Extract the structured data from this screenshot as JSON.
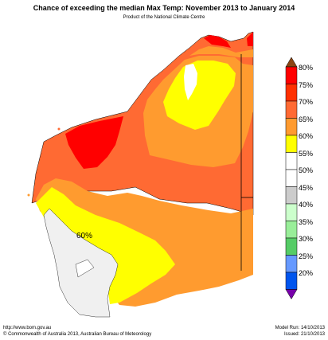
{
  "header": {
    "title": "Chance of exceeding the median Max Temp: November 2013 to January 2014",
    "subtitle": "Product of the National Climate Centre"
  },
  "map": {
    "annotation": "60%"
  },
  "legend": {
    "items": [
      {
        "label": "80%",
        "color": "#ff0000"
      },
      {
        "label": "75%",
        "color": "#ff3000"
      },
      {
        "label": "70%",
        "color": "#ff6a33"
      },
      {
        "label": "65%",
        "color": "#ff9b2f"
      },
      {
        "label": "60%",
        "color": "#ffff00"
      },
      {
        "label": "55%",
        "color": "#ffffff"
      },
      {
        "label": "50%",
        "color": "#ffffff"
      },
      {
        "label": "45%",
        "color": "#cccccc"
      },
      {
        "label": "40%",
        "color": "#ccffcc"
      },
      {
        "label": "35%",
        "color": "#99ee99"
      },
      {
        "label": "30%",
        "color": "#55cc66"
      },
      {
        "label": "25%",
        "color": "#6699ff"
      },
      {
        "label": "20%",
        "color": "#0055ee"
      }
    ],
    "top_arrow_color": "#8b4513",
    "bottom_arrow_color": "#7700aa"
  },
  "footer": {
    "url": "http://www.bom.gov.au",
    "copyright": "©  Commonwealth of Australia 2013, Australian Bureau of Meteorology",
    "model_run": "Model Run: 14/10/2013",
    "issued": "Issued: 21/10/2013"
  },
  "colors": {
    "dark_orange": "#ff6a33",
    "orange": "#ff9b2f",
    "red": "#ff0000",
    "yellow": "#ffff00",
    "grey": "#f0f0f0",
    "boundary": "#000000"
  }
}
